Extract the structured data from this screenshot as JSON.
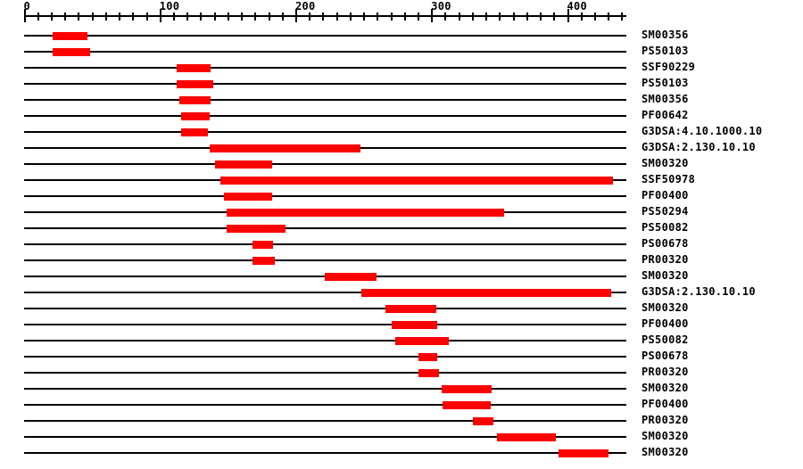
{
  "chart_data": {
    "type": "bar",
    "orientation": "horizontal-intervals",
    "title": "",
    "xlabel": "",
    "ylabel": "",
    "grid": false,
    "legend": false,
    "x_axis": {
      "min": 0,
      "max": 440,
      "tick_interval": 10,
      "labeled_ticks": [
        0,
        100,
        200,
        300,
        400
      ]
    },
    "rows": [
      {
        "label": "SM00356",
        "start": 21,
        "end": 46
      },
      {
        "label": "PS50103",
        "start": 21,
        "end": 48
      },
      {
        "label": "SSF90229",
        "start": 112,
        "end": 137
      },
      {
        "label": "PS50103",
        "start": 112,
        "end": 139
      },
      {
        "label": "SM00356",
        "start": 114,
        "end": 137
      },
      {
        "label": "PF00642",
        "start": 115,
        "end": 136
      },
      {
        "label": "G3DSA:4.10.1000.10",
        "start": 115,
        "end": 135
      },
      {
        "label": "G3DSA:2.130.10.10",
        "start": 136,
        "end": 247
      },
      {
        "label": "SM00320",
        "start": 140,
        "end": 182
      },
      {
        "label": "SSF50978",
        "start": 144,
        "end": 433
      },
      {
        "label": "PF00400",
        "start": 147,
        "end": 182
      },
      {
        "label": "PS50294",
        "start": 149,
        "end": 353
      },
      {
        "label": "PS50082",
        "start": 149,
        "end": 192
      },
      {
        "label": "PS00678",
        "start": 168,
        "end": 183
      },
      {
        "label": "PR00320",
        "start": 168,
        "end": 184
      },
      {
        "label": "SM00320",
        "start": 221,
        "end": 259
      },
      {
        "label": "G3DSA:2.130.10.10",
        "start": 248,
        "end": 432
      },
      {
        "label": "SM00320",
        "start": 266,
        "end": 303
      },
      {
        "label": "PF00400",
        "start": 270,
        "end": 304
      },
      {
        "label": "PS50082",
        "start": 273,
        "end": 312
      },
      {
        "label": "PS00678",
        "start": 290,
        "end": 304
      },
      {
        "label": "PR00320",
        "start": 290,
        "end": 305
      },
      {
        "label": "SM00320",
        "start": 307,
        "end": 344
      },
      {
        "label": "PF00400",
        "start": 308,
        "end": 343
      },
      {
        "label": "PR00320",
        "start": 330,
        "end": 345
      },
      {
        "label": "SM00320",
        "start": 348,
        "end": 391
      },
      {
        "label": "SM00320",
        "start": 393,
        "end": 430
      }
    ]
  },
  "colors": {
    "bar": "#ff0000",
    "line": "#000000",
    "text": "#000000",
    "background": "#ffffff"
  }
}
